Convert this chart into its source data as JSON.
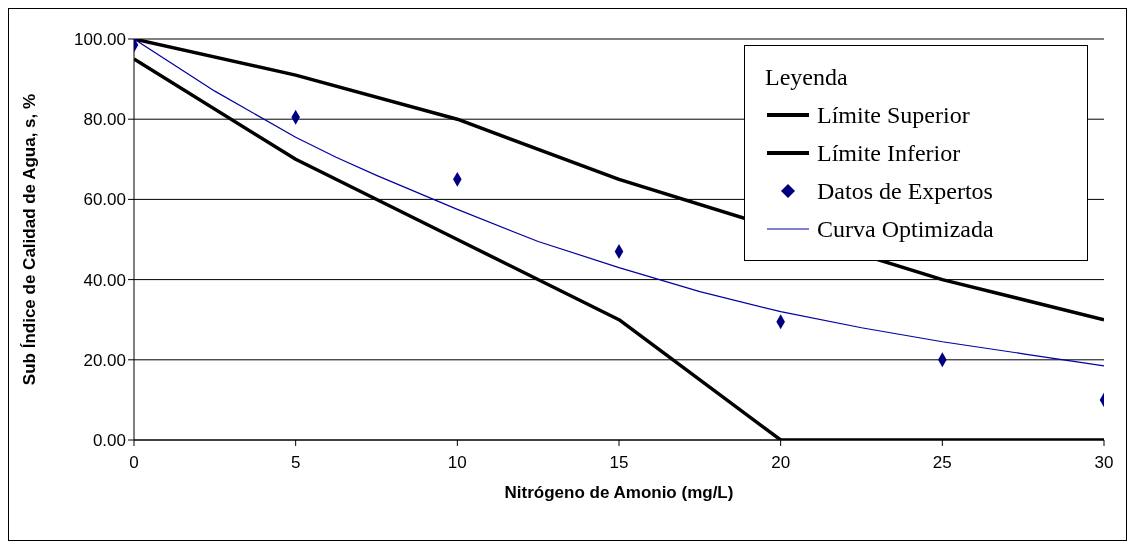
{
  "chart_data": {
    "type": "line",
    "xlabel": "Nitrógeno de Amonio (mg/L)",
    "ylabel": "Sub Índice de Calidad de Agua, s, %",
    "legend_title": "Leyenda",
    "x": [
      0,
      5,
      10,
      15,
      20,
      25,
      30
    ],
    "series": [
      {
        "name": "Límite Superior",
        "color": "#000000",
        "values": [
          100,
          91,
          80,
          65,
          null,
          40,
          30
        ]
      },
      {
        "name": "Límite Inferior",
        "color": "#000000",
        "values": [
          95,
          70,
          50,
          30,
          0,
          0,
          0
        ]
      },
      {
        "name": "Datos de Expertos",
        "type": "scatter",
        "marker": "diamond",
        "color": "#000080",
        "values": [
          98.5,
          80.5,
          65,
          47,
          29.5,
          20,
          10
        ]
      },
      {
        "name": "Curva Optimizada",
        "color": "#0000a0",
        "x": [
          0,
          2.5,
          5,
          6.25,
          7.5,
          10,
          12.5,
          15,
          17.5,
          20,
          22.5,
          25,
          27.5,
          30
        ],
        "values": [
          100,
          87,
          75.5,
          70.5,
          66,
          57.5,
          49.5,
          43,
          37,
          32,
          28,
          24.5,
          21.5,
          18.5
        ]
      }
    ],
    "xlim": [
      0,
      30
    ],
    "xticks": [
      0,
      5,
      10,
      15,
      20,
      25,
      30
    ],
    "ylim": [
      0,
      100
    ],
    "yticks": [
      {
        "value": 0,
        "label": "0.00"
      },
      {
        "value": 20,
        "label": "20.00"
      },
      {
        "value": 40,
        "label": "40.00"
      },
      {
        "value": 60,
        "label": "60.00"
      },
      {
        "value": 80,
        "label": "80.00"
      },
      {
        "value": 100,
        "label": "100.00"
      }
    ],
    "grid": "y",
    "legend": "top right",
    "marker": "none"
  }
}
